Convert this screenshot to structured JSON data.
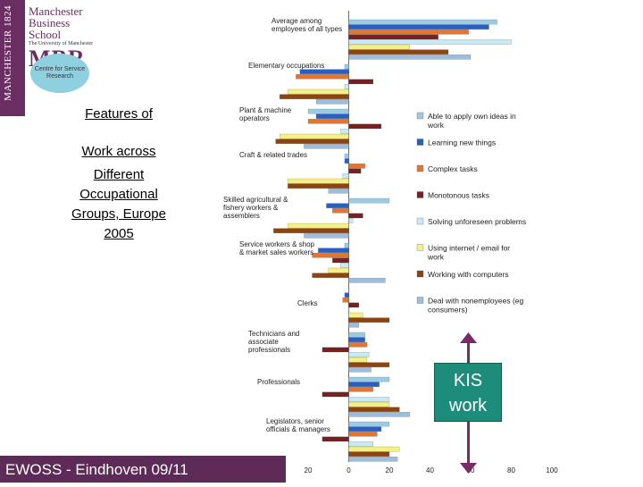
{
  "header": {
    "strip_text": "MANCHESTER 1824",
    "school_name_1": "Manchester",
    "school_name_2": "Business School",
    "school_sub": "The University of Manchester",
    "mbr_text": "MBR",
    "centre_text": "Centre for Service Research"
  },
  "title_lines": [
    "Features of",
    "Work across",
    "Different",
    "Occupational",
    "Groups, Europe",
    "2005"
  ],
  "footer_text": "EWOSS - Eindhoven 09/11",
  "kis": {
    "line1": "KIS",
    "line2": "work"
  },
  "colors": {
    "brand": "#6b2e62",
    "kis": "#1d8c7a"
  },
  "chart_data": {
    "type": "bar",
    "orientation": "horizontal",
    "categories": [
      "Average among employees of all types",
      "Elementary occupations",
      "Plant & machine operators",
      "Craft & related trades",
      "Skilled agricultural & fishery workers & assemblers",
      "Service workers & shop & market sales workers",
      "Clerks",
      "Technicians and associate professionals",
      "Professionals",
      "Legislators, senior officials & managers"
    ],
    "xlim": [
      -60,
      100
    ],
    "xticks": [
      -60,
      -40,
      -20,
      0,
      20,
      40,
      60,
      80,
      100
    ],
    "xtick_labels": [
      "60",
      "40",
      "20",
      "0",
      "20",
      "40",
      "60",
      "80",
      "100"
    ],
    "grid": false,
    "legend_position": "right",
    "series": [
      {
        "name": "Able to apply own ideas in work",
        "color": "#9ecae1",
        "values": [
          73,
          -2,
          -20,
          -2,
          20,
          -2,
          0,
          8,
          20,
          20
        ]
      },
      {
        "name": "Learning new things",
        "color": "#2b5fbf",
        "values": [
          69,
          -24,
          -16,
          -2,
          -11,
          -15,
          -2,
          8,
          15,
          16
        ]
      },
      {
        "name": "Complex tasks",
        "color": "#e8742a",
        "values": [
          59,
          -26,
          -20,
          8,
          -8,
          -18,
          -3,
          9,
          12,
          14
        ]
      },
      {
        "name": "Monotonous tasks",
        "color": "#7a2020",
        "values": [
          44,
          12,
          16,
          6,
          7,
          -8,
          5,
          -13,
          -13,
          -13
        ]
      },
      {
        "name": "Solving unforeseen problems",
        "color": "#c9eaf4",
        "values": [
          80,
          -2,
          -4,
          -3,
          2,
          -4,
          0,
          10,
          20,
          12
        ]
      },
      {
        "name": "Using internet / email for work",
        "color": "#f3ef8a",
        "values": [
          30,
          -30,
          -34,
          -30,
          -30,
          -10,
          7,
          9,
          20,
          25
        ]
      },
      {
        "name": "Working with computers",
        "color": "#8b4513",
        "values": [
          49,
          -34,
          -36,
          -30,
          -37,
          -18,
          20,
          20,
          25,
          20
        ]
      },
      {
        "name": "Deal with nonemployees (eg consumers)",
        "color": "#9bbde0",
        "values": [
          60,
          -16,
          -22,
          -10,
          -22,
          18,
          5,
          11,
          30,
          24
        ]
      }
    ]
  }
}
